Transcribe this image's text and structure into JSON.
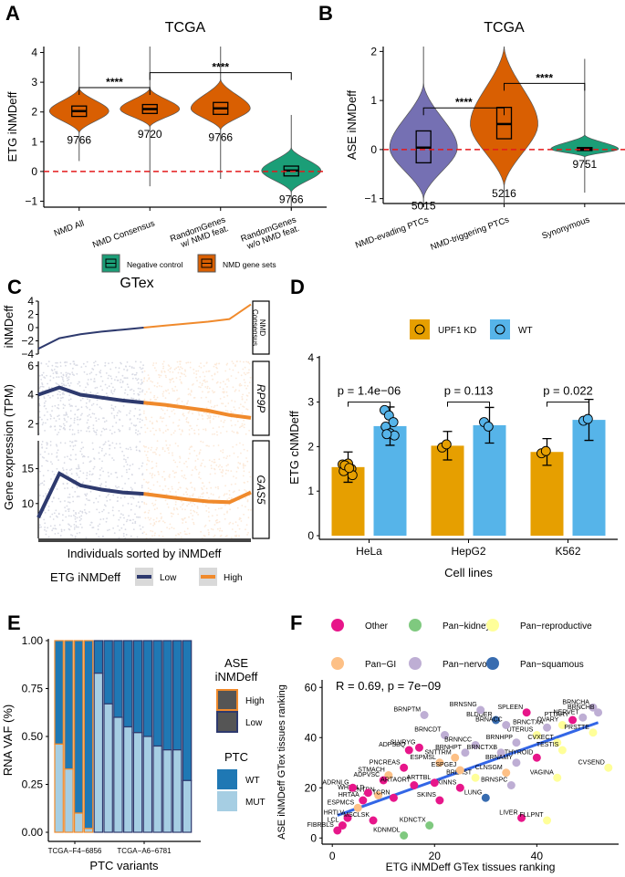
{
  "chart_data": [
    {
      "panel": "A",
      "type": "violin",
      "title": "TCGA",
      "ylabel": "ETG iNMDeff",
      "xlabel": "",
      "ylim": [
        -1.2,
        4.2
      ],
      "yticks": [
        -1,
        0,
        1,
        2,
        3,
        4
      ],
      "reference_line": 0,
      "categories": [
        "NMD All",
        "NMD Consensus",
        "RandomGenes w/ NMD feat.",
        "RandomGenes w/o NMD feat."
      ],
      "category_lines": [
        [
          "NMD All"
        ],
        [
          "NMD Consensus"
        ],
        [
          "RandomGenes",
          "w/ NMD feat."
        ],
        [
          "RandomGenes",
          "w/o NMD feat."
        ]
      ],
      "groups": [
        "NMD gene sets",
        "NMD gene sets",
        "NMD gene sets",
        "Negative control"
      ],
      "n": [
        "9766",
        "9720",
        "9766",
        "9766"
      ],
      "median": [
        2.03,
        2.1,
        2.12,
        0.03
      ],
      "q1": [
        1.85,
        1.95,
        1.92,
        -0.15
      ],
      "q3": [
        2.2,
        2.25,
        2.32,
        0.18
      ],
      "whisker_low": [
        0.35,
        -0.5,
        -0.25,
        -1.3
      ],
      "whisker_high": [
        4.2,
        4.2,
        4.2,
        1.9
      ],
      "violin_min": [
        1.3,
        1.5,
        1.4,
        -0.7
      ],
      "violin_max": [
        2.8,
        2.8,
        3.1,
        0.8
      ],
      "significance": [
        {
          "from": 0,
          "to": 1,
          "y": 2.82,
          "label": "****"
        },
        {
          "from": 1,
          "to": 3,
          "y": 3.32,
          "label": "****"
        }
      ],
      "legend": [
        {
          "label": "Negative control",
          "color": "#1b9e77"
        },
        {
          "label": "NMD gene sets",
          "color": "#d95f02"
        }
      ]
    },
    {
      "panel": "B",
      "type": "violin",
      "title": "TCGA",
      "ylabel": "ASE iNMDeff",
      "ylim": [
        -1.1,
        2.1
      ],
      "yticks": [
        -1,
        0,
        1,
        2
      ],
      "reference_line": 0,
      "categories": [
        "NMD-evading PTCs",
        "NMD-triggering PTCs",
        "Synonymous"
      ],
      "colors": [
        "#7570b3",
        "#d95f02",
        "#1b9e77"
      ],
      "n": [
        "5015",
        "5216",
        "9751"
      ],
      "median": [
        0.04,
        0.52,
        0.01
      ],
      "q1": [
        -0.27,
        0.22,
        -0.02
      ],
      "q3": [
        0.38,
        0.86,
        0.04
      ],
      "whisker_low": [
        -1.15,
        -1.15,
        -0.88
      ],
      "whisker_high": [
        2.1,
        2.1,
        1.85
      ],
      "violin_min": [
        -1.0,
        -0.75,
        -0.15
      ],
      "violin_max": [
        1.35,
        2.1,
        0.3
      ],
      "significance": [
        {
          "from": 0,
          "to": 1,
          "y": 0.85,
          "label": "****"
        },
        {
          "from": 1,
          "to": 2,
          "y": 1.35,
          "label": "****"
        }
      ]
    },
    {
      "panel": "C",
      "type": "scatter",
      "title": "GTex",
      "xlabel": "Individuals sorted by iNMDeff",
      "ylabel_top": "iNMDeff",
      "ylabel": "Gene expression (TPM)",
      "facets": [
        {
          "strip": "NMD Consensus",
          "ylabel": "iNMDeff",
          "yticks": [
            -4,
            -2,
            0,
            2,
            4
          ],
          "ylim": [
            -4,
            4
          ],
          "italic": false,
          "trend_low": [
            -3.2,
            -1.6,
            -1.0,
            -0.6,
            -0.3,
            0.0
          ],
          "trend_high": [
            0.0,
            0.3,
            0.6,
            0.9,
            1.3,
            3.5
          ]
        },
        {
          "strip": "RP9P",
          "yticks": [
            2,
            4,
            6
          ],
          "ylim": [
            1.2,
            6.3
          ],
          "italic": true,
          "trend_low": [
            4.0,
            4.5,
            4.0,
            3.8,
            3.6,
            3.45
          ],
          "trend_high": [
            3.45,
            3.3,
            3.1,
            2.9,
            2.6,
            2.4
          ]
        },
        {
          "strip": "GAS5",
          "yticks": [
            10,
            15
          ],
          "ylim": [
            5,
            19
          ],
          "italic": true,
          "trend_low": [
            8.0,
            14.3,
            12.6,
            12.0,
            11.6,
            11.4
          ],
          "trend_high": [
            11.4,
            11.0,
            10.6,
            10.3,
            10.2,
            11.6
          ]
        }
      ],
      "legend_title": "ETG iNMDeff",
      "legend": [
        {
          "label": "Low",
          "color": "#2e3a6e"
        },
        {
          "label": "High",
          "color": "#f08a2c"
        }
      ]
    },
    {
      "panel": "D",
      "type": "bar",
      "xlabel": "Cell lines",
      "ylabel": "ETG cNMDeff",
      "ylim": [
        0,
        4.2
      ],
      "yticks": [
        0,
        1,
        2,
        3,
        4
      ],
      "categories": [
        "HeLa",
        "HepG2",
        "K562"
      ],
      "series": [
        {
          "name": "UPF1 KD",
          "color": "#e69f00",
          "values": [
            1.54,
            2.02,
            1.88
          ],
          "err": [
            0.34,
            0.32,
            0.3
          ],
          "points": [
            [
              1.6,
              1.55,
              1.5,
              1.45,
              1.62,
              1.36,
              1.58,
              1.52
            ],
            [
              1.98,
              2.05
            ],
            [
              1.85,
              1.9
            ]
          ]
        },
        {
          "name": "WT",
          "color": "#56b4e9",
          "values": [
            2.46,
            2.48,
            2.6
          ],
          "err": [
            0.43,
            0.4,
            0.46
          ],
          "points": [
            [
              2.82,
              2.7,
              2.55,
              2.45,
              2.3,
              2.25,
              2.28
            ],
            [
              2.55,
              2.45
            ],
            [
              2.58,
              2.62
            ]
          ]
        }
      ],
      "pvalues": [
        "p = 1.4e−06",
        "p = 0.113",
        "p = 0.022"
      ]
    },
    {
      "panel": "E",
      "type": "stacked_bar",
      "xlabel": "PTC variants",
      "ylabel": "RNA VAF (%)",
      "ylim": [
        0,
        1
      ],
      "yticks": [
        "0.00",
        "0.25",
        "0.50",
        "0.75",
        "1.00"
      ],
      "xtick_labels": [
        "TCGA−F4−6856",
        "TCGA−A6−6781"
      ],
      "mut_fraction": [
        0.46,
        0.33,
        0.1,
        0.02,
        0.83,
        0.67,
        0.6,
        0.55,
        0.52,
        0.5,
        0.45,
        0.43,
        0.43,
        0.27
      ],
      "ase_group": [
        "High",
        "High",
        "High",
        "High",
        "Low",
        "Low",
        "Low",
        "Low",
        "Low",
        "Low",
        "Low",
        "Low",
        "Low",
        "Low"
      ],
      "legend_ase_title": [
        "ASE",
        "iNMDeff"
      ],
      "legend_ase": [
        {
          "label": "High",
          "color": "#f08a2c"
        },
        {
          "label": "Low",
          "color": "#2e3a6e"
        }
      ],
      "legend_ptc_title": "PTC",
      "legend_ptc": [
        {
          "label": "WT",
          "color": "#1f78b4"
        },
        {
          "label": "MUT",
          "color": "#a6cee3"
        }
      ]
    },
    {
      "panel": "F",
      "type": "scatter",
      "xlabel": "ETG iNMDeff GTex tissues ranking",
      "ylabel": "ASE iNMDeff GTex tissues ranking",
      "xlim": [
        -2,
        56
      ],
      "ylim": [
        -1,
        63
      ],
      "xticks": [
        0,
        20,
        40
      ],
      "yticks": [
        0,
        20,
        40,
        60
      ],
      "annotation": "R = 0.69, p = 7e−09",
      "trend": {
        "x0": 1,
        "y0": 9,
        "x1": 52,
        "y1": 46
      },
      "legend": [
        {
          "label": "Other",
          "color": "#e7168a"
        },
        {
          "label": "Pan−kidney",
          "color": "#7fc97f"
        },
        {
          "label": "Pan−reproductive",
          "color": "#ffff99"
        },
        {
          "label": "Pan−GI",
          "color": "#fdc086"
        },
        {
          "label": "Pan−nervous",
          "color": "#beaed4"
        },
        {
          "label": "Pan−squamous",
          "color": "#386cb0"
        }
      ],
      "points": [
        {
          "label": "BRNCHA",
          "x": 51,
          "y": 52,
          "g": "Pan−nervous"
        },
        {
          "label": "BRNCHB",
          "x": 52,
          "y": 50,
          "g": "Pan−nervous"
        },
        {
          "label": "PTTARY",
          "x": 47,
          "y": 47,
          "g": "Other"
        },
        {
          "label": "NERVET",
          "x": 49,
          "y": 48,
          "g": "Pan−nervous"
        },
        {
          "label": "SPLEEN",
          "x": 38,
          "y": 50,
          "g": "Other"
        },
        {
          "label": "BRNCTXA",
          "x": 42,
          "y": 44,
          "g": "Pan−nervous"
        },
        {
          "label": "OVARY",
          "x": 45,
          "y": 45,
          "g": "Pan−reproductive"
        },
        {
          "label": "UTERUS",
          "x": 40,
          "y": 41,
          "g": "Pan−reproductive"
        },
        {
          "label": "PRSTTE",
          "x": 51,
          "y": 42,
          "g": "Pan−reproductive"
        },
        {
          "label": "CVXECT",
          "x": 44,
          "y": 38,
          "g": "Pan−reproductive"
        },
        {
          "label": "TESTIS",
          "x": 45,
          "y": 35,
          "g": "Pan−reproductive"
        },
        {
          "label": "BLDDER",
          "x": 32,
          "y": 47,
          "g": "Pan−squamous"
        },
        {
          "label": "BRNSNG",
          "x": 29,
          "y": 51,
          "g": "Pan−nervous"
        },
        {
          "label": "BRNACC",
          "x": 34,
          "y": 45,
          "g": "Pan−nervous"
        },
        {
          "label": "BRNPTM",
          "x": 18,
          "y": 49,
          "g": "Pan−nervous"
        },
        {
          "label": "BRNCDT",
          "x": 22,
          "y": 41,
          "g": "Pan−nervous"
        },
        {
          "label": "BRNNCC",
          "x": 28,
          "y": 37,
          "g": "Pan−nervous"
        },
        {
          "label": "BRNHPP",
          "x": 36,
          "y": 38,
          "g": "Pan−nervous"
        },
        {
          "label": "BRNHPT",
          "x": 26,
          "y": 34,
          "g": "Pan−nervous"
        },
        {
          "label": "BRNCTXB",
          "x": 33,
          "y": 34,
          "g": "Pan−nervous"
        },
        {
          "label": "BRNAMY",
          "x": 36,
          "y": 30,
          "g": "Pan−nervous"
        },
        {
          "label": "THYROID",
          "x": 40,
          "y": 32,
          "g": "Other"
        },
        {
          "label": "CVSEND",
          "x": 54,
          "y": 28,
          "g": "Pan−reproductive"
        },
        {
          "label": "VAGINA",
          "x": 44,
          "y": 24,
          "g": "Pan−reproductive"
        },
        {
          "label": "CLNSGM",
          "x": 34,
          "y": 26,
          "g": "Pan−GI"
        },
        {
          "label": "BRNSPC",
          "x": 35,
          "y": 21,
          "g": "Pan−nervous"
        },
        {
          "label": "BREAST",
          "x": 28,
          "y": 24,
          "g": "Pan−reproductive"
        },
        {
          "label": "LUNG",
          "x": 30,
          "y": 16,
          "g": "Pan−squamous"
        },
        {
          "label": "LIVER",
          "x": 37,
          "y": 8,
          "g": "Other"
        },
        {
          "label": "FLLPNT",
          "x": 42,
          "y": 7,
          "g": "Pan−reproductive"
        },
        {
          "label": "SKINNS",
          "x": 25,
          "y": 20,
          "g": "Other"
        },
        {
          "label": "SKINS",
          "x": 21,
          "y": 15,
          "g": "Other"
        },
        {
          "label": "ARTTBL",
          "x": 20,
          "y": 22,
          "g": "Other"
        },
        {
          "label": "ADPSBQ",
          "x": 15,
          "y": 35,
          "g": "Other"
        },
        {
          "label": "SLVRYG",
          "x": 17,
          "y": 36,
          "g": "Other"
        },
        {
          "label": "SNTTRM",
          "x": 24,
          "y": 32,
          "g": "Pan−GI"
        },
        {
          "label": "ESPMSL",
          "x": 21,
          "y": 30,
          "g": "Pan−GI"
        },
        {
          "label": "ESPGEJ",
          "x": 25,
          "y": 27,
          "g": "Pan−GI"
        },
        {
          "label": "PNCREAS",
          "x": 14,
          "y": 28,
          "g": "Other"
        },
        {
          "label": "STMACH",
          "x": 11,
          "y": 25,
          "g": "Pan−GI"
        },
        {
          "label": "ADPVSC",
          "x": 10,
          "y": 23,
          "g": "Other"
        },
        {
          "label": "ARTAORT",
          "x": 16,
          "y": 21,
          "g": "Other"
        },
        {
          "label": "CLNTRN",
          "x": 9,
          "y": 17,
          "g": "Pan−GI"
        },
        {
          "label": "ARTCRN",
          "x": 12,
          "y": 16,
          "g": "Other"
        },
        {
          "label": "WHLBLD",
          "x": 7,
          "y": 18,
          "g": "Other"
        },
        {
          "label": "ADRNLG",
          "x": 4,
          "y": 20,
          "g": "Other"
        },
        {
          "label": "ESPMCS",
          "x": 5,
          "y": 12,
          "g": "Pan−GI"
        },
        {
          "label": "HRTAA",
          "x": 6,
          "y": 15,
          "g": "Other"
        },
        {
          "label": "HRTLV",
          "x": 3,
          "y": 8,
          "g": "Other"
        },
        {
          "label": "LCL",
          "x": 2,
          "y": 5,
          "g": "Other"
        },
        {
          "label": "FIBRBLS",
          "x": 1,
          "y": 3,
          "g": "Other"
        },
        {
          "label": "MSCLSK",
          "x": 8,
          "y": 7,
          "g": "Other"
        },
        {
          "label": "KDNCTX",
          "x": 19,
          "y": 5,
          "g": "Pan−kidney"
        },
        {
          "label": "KDNMDL",
          "x": 14,
          "y": 1,
          "g": "Pan−kidney"
        }
      ]
    }
  ],
  "panel_labels": [
    "A",
    "B",
    "C",
    "D",
    "E",
    "F"
  ]
}
